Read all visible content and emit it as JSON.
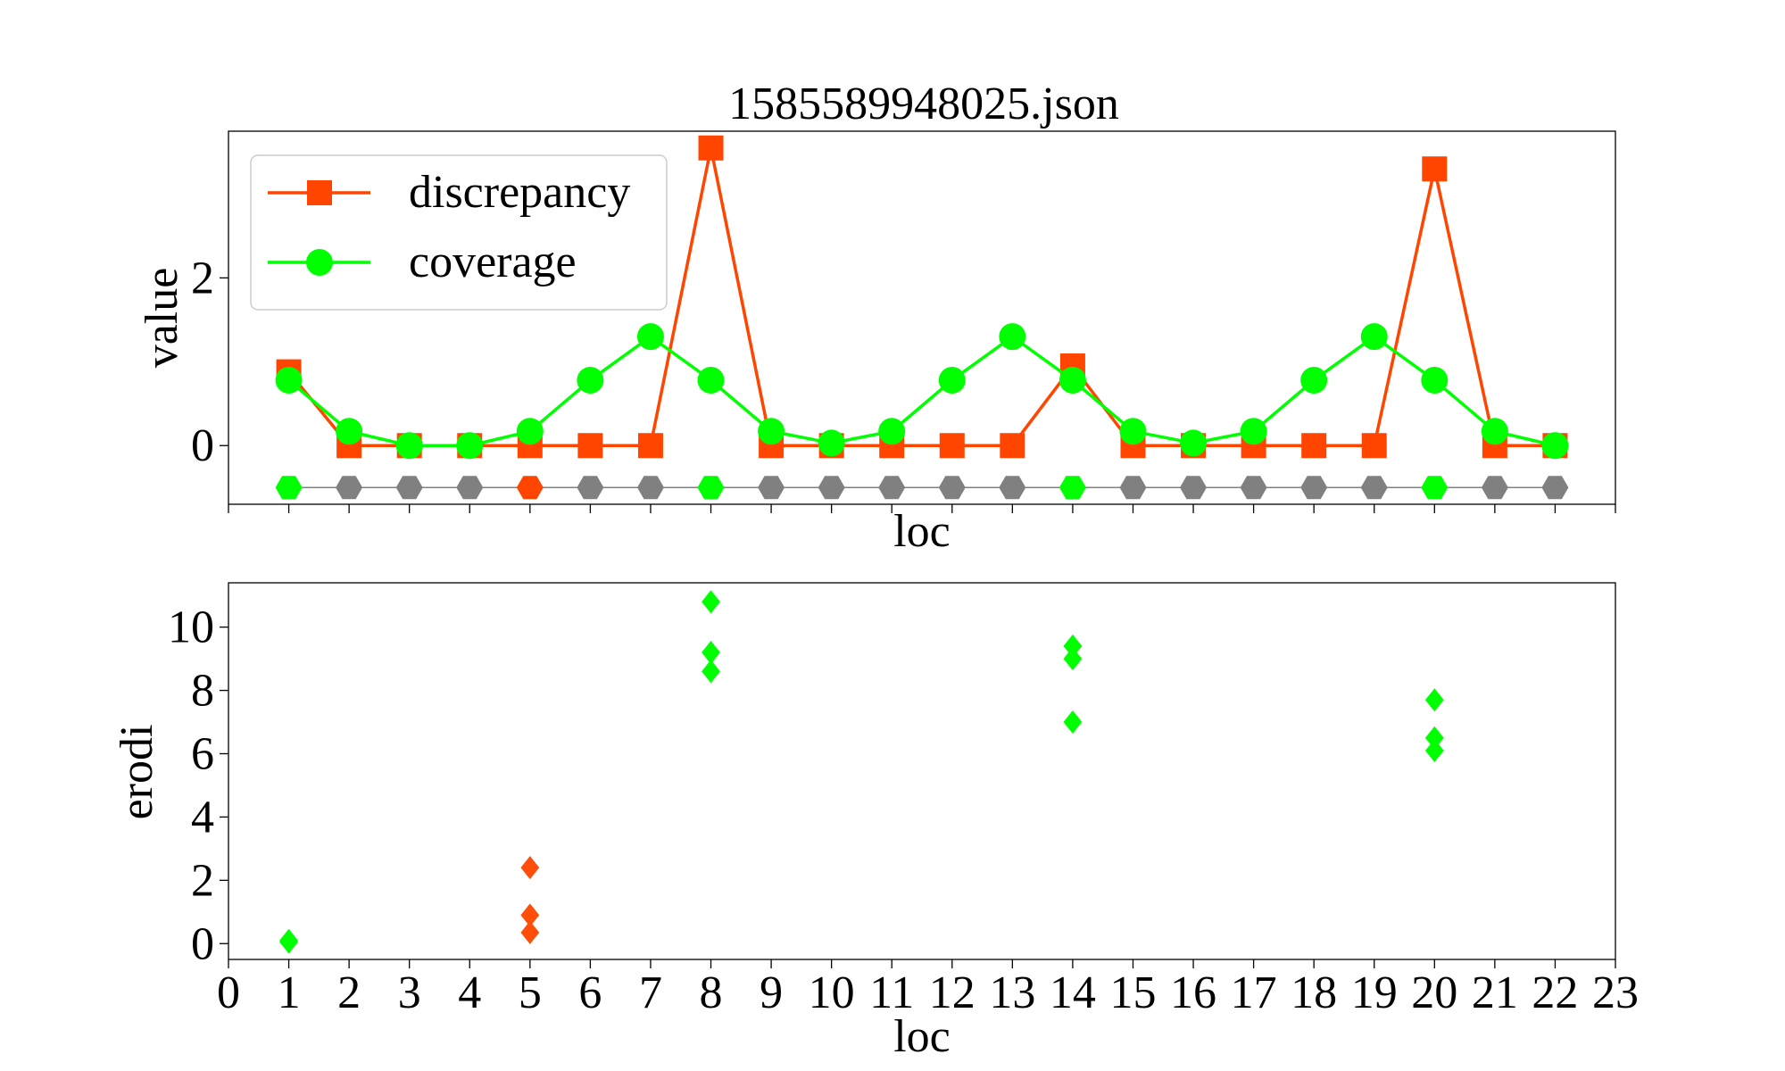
{
  "title": "1585589948025.json",
  "colors": {
    "discrepancy": "#ff4500",
    "coverage": "#00ff00",
    "marker_gray": "#808080",
    "erodi_orange": "#ff4d0a",
    "erodi_green": "#00ff00"
  },
  "chart_data": [
    {
      "type": "line",
      "xlabel": "loc",
      "ylabel": "value",
      "x": [
        1,
        2,
        3,
        4,
        5,
        6,
        7,
        8,
        9,
        10,
        11,
        12,
        13,
        14,
        15,
        16,
        17,
        18,
        19,
        20,
        21,
        22
      ],
      "series": [
        {
          "name": "discrepancy",
          "marker": "square",
          "values": [
            0.88,
            0,
            0,
            0,
            0,
            0,
            0,
            3.55,
            0,
            0,
            0,
            0,
            0,
            0.95,
            0,
            0,
            0,
            0,
            0,
            3.3,
            0,
            0
          ]
        },
        {
          "name": "coverage",
          "marker": "circle",
          "values": [
            0.78,
            0.17,
            0.0,
            0.0,
            0.17,
            0.78,
            1.3,
            0.78,
            0.17,
            0.03,
            0.17,
            0.78,
            1.3,
            0.78,
            0.17,
            0.03,
            0.17,
            0.78,
            1.3,
            0.78,
            0.17,
            0.0
          ]
        }
      ],
      "status_row": {
        "y": -0.5,
        "marker": "hexagon",
        "colors": [
          "green",
          "gray",
          "gray",
          "gray",
          "orange",
          "gray",
          "gray",
          "green",
          "gray",
          "gray",
          "gray",
          "gray",
          "gray",
          "green",
          "gray",
          "gray",
          "gray",
          "gray",
          "gray",
          "green",
          "gray",
          "gray"
        ]
      },
      "xlim": [
        0,
        23
      ],
      "ylim": [
        -0.7,
        3.75
      ],
      "yticks": [
        "0",
        "2"
      ],
      "legend": {
        "placement": "upper-left",
        "entries": [
          "discrepancy",
          "coverage"
        ]
      },
      "grid": false
    },
    {
      "type": "scatter",
      "xlabel": "loc",
      "ylabel": "erodi",
      "marker": "diamond",
      "points": [
        {
          "x": 1,
          "y": 0.05,
          "color": "green"
        },
        {
          "x": 1,
          "y": 0.1,
          "color": "green"
        },
        {
          "x": 5,
          "y": 2.4,
          "color": "orange"
        },
        {
          "x": 5,
          "y": 0.9,
          "color": "orange"
        },
        {
          "x": 5,
          "y": 0.35,
          "color": "orange"
        },
        {
          "x": 8,
          "y": 10.8,
          "color": "green"
        },
        {
          "x": 8,
          "y": 9.2,
          "color": "green"
        },
        {
          "x": 8,
          "y": 8.6,
          "color": "green"
        },
        {
          "x": 14,
          "y": 9.4,
          "color": "green"
        },
        {
          "x": 14,
          "y": 9.0,
          "color": "green"
        },
        {
          "x": 14,
          "y": 7.0,
          "color": "green"
        },
        {
          "x": 20,
          "y": 7.7,
          "color": "green"
        },
        {
          "x": 20,
          "y": 6.5,
          "color": "green"
        },
        {
          "x": 20,
          "y": 6.1,
          "color": "green"
        }
      ],
      "xlim": [
        0,
        23
      ],
      "ylim": [
        -0.5,
        11.4
      ],
      "xticks": [
        "0",
        "1",
        "2",
        "3",
        "4",
        "5",
        "6",
        "7",
        "8",
        "9",
        "10",
        "11",
        "12",
        "13",
        "14",
        "15",
        "16",
        "17",
        "18",
        "19",
        "20",
        "21",
        "22",
        "23"
      ],
      "yticks": [
        "0",
        "2",
        "4",
        "6",
        "8",
        "10"
      ],
      "grid": false
    }
  ]
}
